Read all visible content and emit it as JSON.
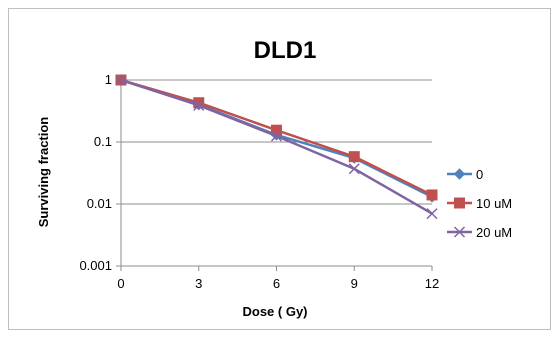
{
  "chart_data": {
    "type": "line",
    "title": "DLD1",
    "xlabel": "Dose ( Gy)",
    "ylabel": "Surviving fraction",
    "x": [
      0,
      3,
      6,
      9,
      12
    ],
    "x_tick_labels": [
      "0",
      "3",
      "6",
      "9",
      "12"
    ],
    "y_scale": "log",
    "ylim": [
      0.001,
      1
    ],
    "y_ticks": [
      1,
      0.1,
      0.01,
      0.001
    ],
    "y_tick_labels": [
      "1",
      "0.1",
      "0.01",
      "0.001"
    ],
    "grid": "horizontal",
    "legend_position": "right",
    "series": [
      {
        "name": "0",
        "values": [
          1,
          0.4,
          0.13,
          0.055,
          0.013
        ],
        "color": "#4f81bd",
        "marker": "diamond"
      },
      {
        "name": "10 uM",
        "values": [
          1,
          0.43,
          0.155,
          0.058,
          0.014
        ],
        "color": "#c0504d",
        "marker": "square"
      },
      {
        "name": "20 uM",
        "values": [
          1,
          0.39,
          0.125,
          0.037,
          0.007
        ],
        "color": "#8064a2",
        "marker": "x"
      }
    ]
  }
}
